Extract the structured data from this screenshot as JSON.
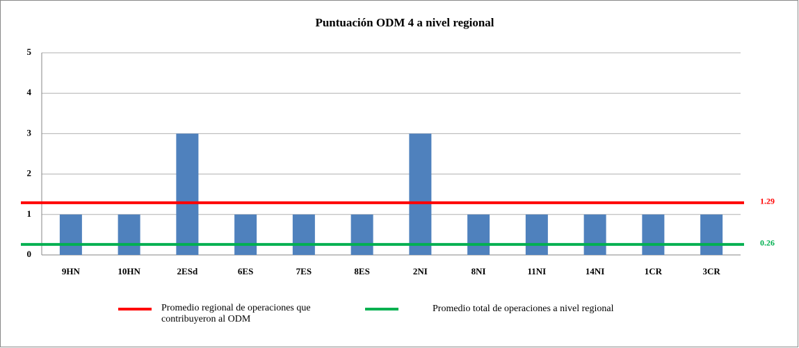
{
  "chart_data": {
    "type": "bar",
    "title": "Puntuación ODM 4 a nivel regional",
    "categories": [
      "9HN",
      "10HN",
      "2ESd",
      "6ES",
      "7ES",
      "8ES",
      "2NI",
      "8NI",
      "11NI",
      "14NI",
      "1CR",
      "3CR"
    ],
    "values": [
      1,
      1,
      3,
      1,
      1,
      1,
      3,
      1,
      1,
      1,
      1,
      1
    ],
    "color": "#4f81bd",
    "ylim": [
      0,
      5
    ],
    "yticks": [
      0,
      1,
      2,
      3,
      4,
      5
    ],
    "grid": true,
    "reference_lines": [
      {
        "name": "Promedio regional de operaciones que contribuyeron al ODM",
        "value": 1.29,
        "color": "#ff0000"
      },
      {
        "name": "Promedio total de operaciones a nivel regional",
        "value": 0.26,
        "color": "#00b050"
      }
    ]
  }
}
